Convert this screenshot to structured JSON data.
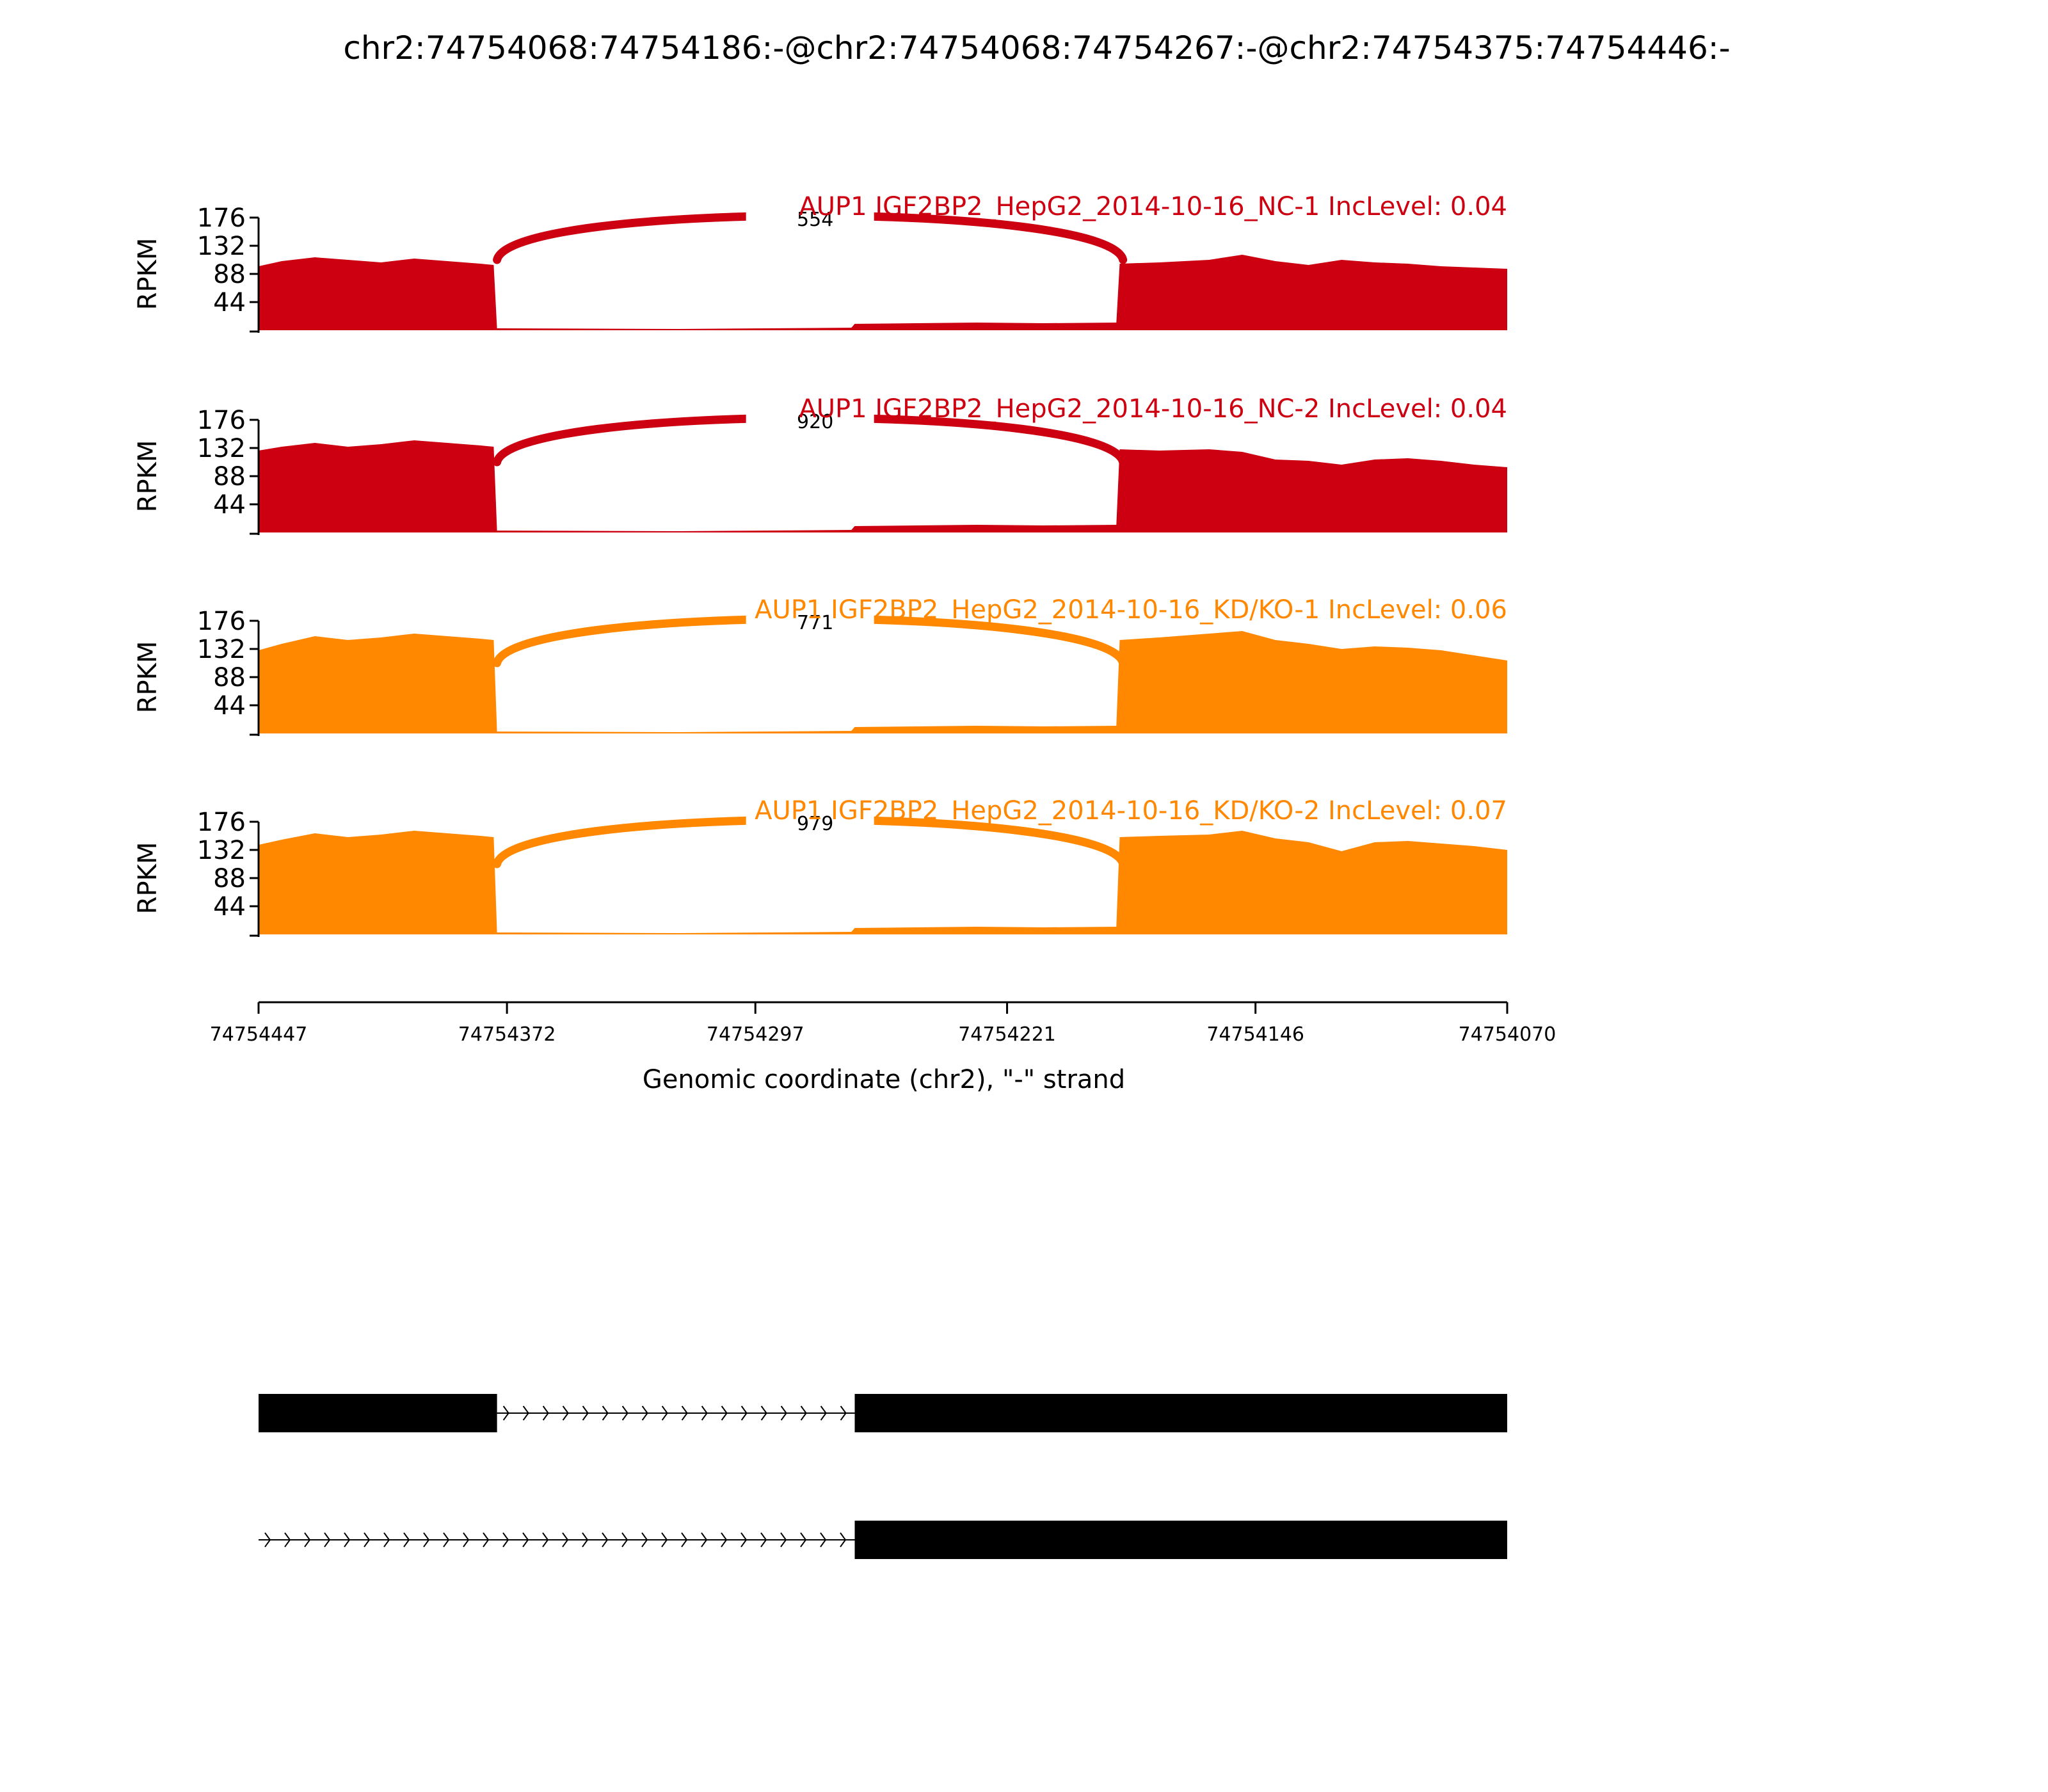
{
  "title": "chr2:74754068:74754186:-@chr2:74754068:74754267:-@chr2:74754375:74754446:-",
  "colors": {
    "nc": "#cc0011",
    "kd": "#ff8800",
    "axis": "#000000",
    "junction_label_bg": "#ffffff"
  },
  "chart_data": {
    "type": "area",
    "subtype": "sashimi",
    "x_domain": [
      74754447,
      74754070
    ],
    "x_ticks": [
      "74754447",
      "74754372",
      "74754297",
      "74754221",
      "74754146",
      "74754070"
    ],
    "xlabel": "Genomic coordinate (chr2), \"-\" strand",
    "ylabel": "RPKM",
    "y_ticks": [
      "44",
      "88",
      "132",
      "176"
    ],
    "ylim": [
      0,
      176
    ],
    "tracks": [
      {
        "label": "AUP1 IGF2BP2_HepG2_2014-10-16_NC-1 IncLevel: 0.04",
        "color_key": "nc",
        "junction": {
          "start": 74754375,
          "end": 74754186,
          "count": "554"
        },
        "coverage": [
          [
            74754447,
            100
          ],
          [
            74754440,
            108
          ],
          [
            74754430,
            114
          ],
          [
            74754420,
            110
          ],
          [
            74754410,
            106
          ],
          [
            74754400,
            112
          ],
          [
            74754390,
            108
          ],
          [
            74754380,
            104
          ],
          [
            74754376,
            102
          ],
          [
            74754375,
            3
          ],
          [
            74754320,
            2
          ],
          [
            74754268,
            4
          ],
          [
            74754267,
            10
          ],
          [
            74754230,
            12
          ],
          [
            74754210,
            11
          ],
          [
            74754188,
            12
          ],
          [
            74754187,
            104
          ],
          [
            74754175,
            106
          ],
          [
            74754160,
            110
          ],
          [
            74754150,
            118
          ],
          [
            74754140,
            108
          ],
          [
            74754130,
            102
          ],
          [
            74754120,
            110
          ],
          [
            74754110,
            106
          ],
          [
            74754100,
            104
          ],
          [
            74754090,
            100
          ],
          [
            74754080,
            98
          ],
          [
            74754070,
            96
          ]
        ]
      },
      {
        "label": "AUP1 IGF2BP2_HepG2_2014-10-16_NC-2 IncLevel: 0.04",
        "color_key": "nc",
        "junction": {
          "start": 74754375,
          "end": 74754186,
          "count": "920"
        },
        "coverage": [
          [
            74754447,
            128
          ],
          [
            74754440,
            134
          ],
          [
            74754430,
            140
          ],
          [
            74754420,
            134
          ],
          [
            74754410,
            138
          ],
          [
            74754400,
            144
          ],
          [
            74754390,
            140
          ],
          [
            74754380,
            136
          ],
          [
            74754376,
            134
          ],
          [
            74754375,
            3
          ],
          [
            74754320,
            2
          ],
          [
            74754268,
            4
          ],
          [
            74754267,
            10
          ],
          [
            74754230,
            12
          ],
          [
            74754210,
            11
          ],
          [
            74754188,
            12
          ],
          [
            74754187,
            130
          ],
          [
            74754175,
            128
          ],
          [
            74754160,
            130
          ],
          [
            74754150,
            126
          ],
          [
            74754140,
            114
          ],
          [
            74754130,
            112
          ],
          [
            74754120,
            106
          ],
          [
            74754110,
            114
          ],
          [
            74754100,
            116
          ],
          [
            74754090,
            112
          ],
          [
            74754080,
            106
          ],
          [
            74754070,
            102
          ]
        ]
      },
      {
        "label": "AUP1 IGF2BP2_HepG2_2014-10-16_KD/KO-1 IncLevel: 0.06",
        "color_key": "kd",
        "junction": {
          "start": 74754375,
          "end": 74754186,
          "count": "771"
        },
        "coverage": [
          [
            74754447,
            130
          ],
          [
            74754440,
            140
          ],
          [
            74754430,
            152
          ],
          [
            74754420,
            146
          ],
          [
            74754410,
            150
          ],
          [
            74754400,
            156
          ],
          [
            74754390,
            152
          ],
          [
            74754380,
            148
          ],
          [
            74754376,
            146
          ],
          [
            74754375,
            3
          ],
          [
            74754320,
            2
          ],
          [
            74754268,
            4
          ],
          [
            74754267,
            10
          ],
          [
            74754230,
            12
          ],
          [
            74754210,
            11
          ],
          [
            74754188,
            12
          ],
          [
            74754187,
            146
          ],
          [
            74754175,
            150
          ],
          [
            74754160,
            156
          ],
          [
            74754150,
            160
          ],
          [
            74754140,
            146
          ],
          [
            74754130,
            140
          ],
          [
            74754120,
            132
          ],
          [
            74754110,
            136
          ],
          [
            74754100,
            134
          ],
          [
            74754090,
            130
          ],
          [
            74754080,
            122
          ],
          [
            74754070,
            114
          ]
        ]
      },
      {
        "label": "AUP1 IGF2BP2_HepG2_2014-10-16_KD/KO-2 IncLevel: 0.07",
        "color_key": "kd",
        "junction": {
          "start": 74754375,
          "end": 74754186,
          "count": "979"
        },
        "coverage": [
          [
            74754447,
            140
          ],
          [
            74754440,
            148
          ],
          [
            74754430,
            158
          ],
          [
            74754420,
            152
          ],
          [
            74754410,
            156
          ],
          [
            74754400,
            162
          ],
          [
            74754390,
            158
          ],
          [
            74754380,
            154
          ],
          [
            74754376,
            152
          ],
          [
            74754375,
            3
          ],
          [
            74754320,
            2
          ],
          [
            74754268,
            4
          ],
          [
            74754267,
            10
          ],
          [
            74754230,
            12
          ],
          [
            74754210,
            11
          ],
          [
            74754188,
            12
          ],
          [
            74754187,
            152
          ],
          [
            74754175,
            154
          ],
          [
            74754160,
            156
          ],
          [
            74754150,
            162
          ],
          [
            74754140,
            150
          ],
          [
            74754130,
            144
          ],
          [
            74754120,
            130
          ],
          [
            74754110,
            144
          ],
          [
            74754100,
            146
          ],
          [
            74754090,
            142
          ],
          [
            74754080,
            138
          ],
          [
            74754070,
            132
          ]
        ]
      }
    ],
    "isoforms": [
      {
        "exons": [
          [
            74754447,
            74754375
          ],
          [
            74754267,
            74754070
          ]
        ],
        "introns": [
          [
            74754375,
            74754267
          ]
        ]
      },
      {
        "exons": [
          [
            74754267,
            74754070
          ]
        ],
        "introns": [
          [
            74754447,
            74754267
          ]
        ]
      }
    ]
  }
}
